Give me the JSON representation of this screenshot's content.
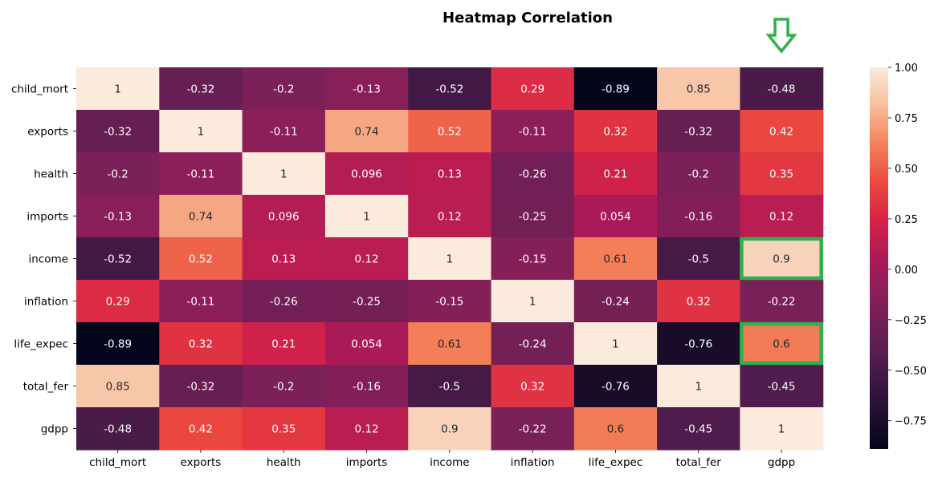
{
  "chart_data": {
    "type": "heatmap",
    "title": "Heatmap Correlation",
    "xlabel": "",
    "ylabel": "",
    "x_categories": [
      "child_mort",
      "exports",
      "health",
      "imports",
      "income",
      "inflation",
      "life_expec",
      "total_fer",
      "gdpp"
    ],
    "y_categories": [
      "child_mort",
      "exports",
      "health",
      "imports",
      "income",
      "inflation",
      "life_expec",
      "total_fer",
      "gdpp"
    ],
    "values": [
      [
        1,
        -0.32,
        -0.2,
        -0.13,
        -0.52,
        0.29,
        -0.89,
        0.85,
        -0.48
      ],
      [
        -0.32,
        1,
        -0.11,
        0.74,
        0.52,
        -0.11,
        0.32,
        -0.32,
        0.42
      ],
      [
        -0.2,
        -0.11,
        1,
        0.096,
        0.13,
        -0.26,
        0.21,
        -0.2,
        0.35
      ],
      [
        -0.13,
        0.74,
        0.096,
        1,
        0.12,
        -0.25,
        0.054,
        -0.16,
        0.12
      ],
      [
        -0.52,
        0.52,
        0.13,
        0.12,
        1,
        -0.15,
        0.61,
        -0.5,
        0.9
      ],
      [
        0.29,
        -0.11,
        -0.26,
        -0.25,
        -0.15,
        1,
        -0.24,
        0.32,
        -0.22
      ],
      [
        -0.89,
        0.32,
        0.21,
        0.054,
        0.61,
        -0.24,
        1,
        -0.76,
        0.6
      ],
      [
        0.85,
        -0.32,
        -0.2,
        -0.16,
        -0.5,
        0.32,
        -0.76,
        1,
        -0.45
      ],
      [
        -0.48,
        0.42,
        0.35,
        0.12,
        0.9,
        -0.22,
        0.6,
        -0.45,
        1
      ]
    ],
    "colorbar": {
      "min": -0.89,
      "max": 1.0,
      "ticks": [
        1.0,
        0.75,
        0.5,
        0.25,
        0.0,
        -0.25,
        -0.5,
        -0.75
      ],
      "tick_labels": [
        "1.00",
        "0.75",
        "0.50",
        "0.25",
        "0.00",
        "−0.25",
        "−0.50",
        "−0.75"
      ],
      "colormap": "rocket"
    },
    "annotations": {
      "highlight_color": "#2db14a",
      "highlighted_cells": [
        {
          "row": "income",
          "col": "gdpp"
        },
        {
          "row": "life_expec",
          "col": "gdpp"
        }
      ],
      "arrow": {
        "points_to_column": "gdpp",
        "direction": "down"
      }
    },
    "grid": false,
    "legend": "colorbar-right"
  }
}
